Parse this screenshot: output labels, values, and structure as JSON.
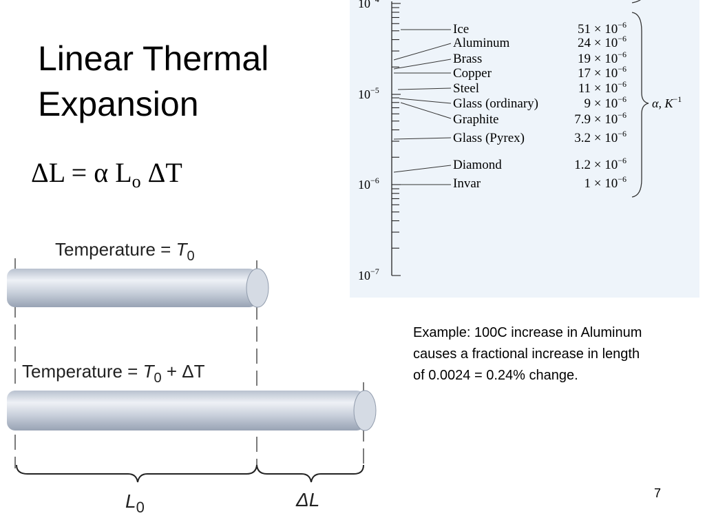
{
  "title": "Linear Thermal Expansion",
  "equation": {
    "lhs": "ΔL",
    "equals": "=",
    "alpha": "α",
    "length": "L",
    "subscript": "o",
    "delta_t": "ΔT"
  },
  "scale": {
    "axis_labels": [
      {
        "base": "10",
        "exponent": "−4"
      },
      {
        "base": "10",
        "exponent": "−5"
      },
      {
        "base": "10",
        "exponent": "−6"
      },
      {
        "base": "10",
        "exponent": "−7"
      }
    ],
    "materials": [
      {
        "name": "Ice",
        "value": "51 × 10",
        "exponent": "−6"
      },
      {
        "name": "Aluminum",
        "value": "24 × 10",
        "exponent": "−6"
      },
      {
        "name": "Brass",
        "value": "19 × 10",
        "exponent": "−6"
      },
      {
        "name": "Copper",
        "value": "17 × 10",
        "exponent": "−6"
      },
      {
        "name": "Steel",
        "value": "11 × 10",
        "exponent": "−6"
      },
      {
        "name": "Glass (ordinary)",
        "value": "9 × 10",
        "exponent": "−6"
      },
      {
        "name": "Graphite",
        "value": "7.9 × 10",
        "exponent": "−6"
      },
      {
        "name": "Glass (Pyrex)",
        "value": "3.2 × 10",
        "exponent": "−6"
      },
      {
        "name": "Diamond",
        "value": "1.2 × 10",
        "exponent": "−6"
      },
      {
        "name": "Invar",
        "value": "1 × 10",
        "exponent": "−6"
      }
    ],
    "symbol": "α, K",
    "symbol_exponent": "−1"
  },
  "diagram": {
    "before": {
      "label": "Temperature = ",
      "variable": "T",
      "subscript": "0"
    },
    "after": {
      "label": "Temperature = ",
      "variable": "T",
      "subscript": "0",
      "suffix": " + ΔT"
    },
    "original_length": {
      "label": "L",
      "subscript": "0"
    },
    "change": "ΔL"
  },
  "example": "Example: 100C increase in Aluminum causes a fractional increase in length of 0.0024 = 0.24% change.",
  "page_number": "7"
}
